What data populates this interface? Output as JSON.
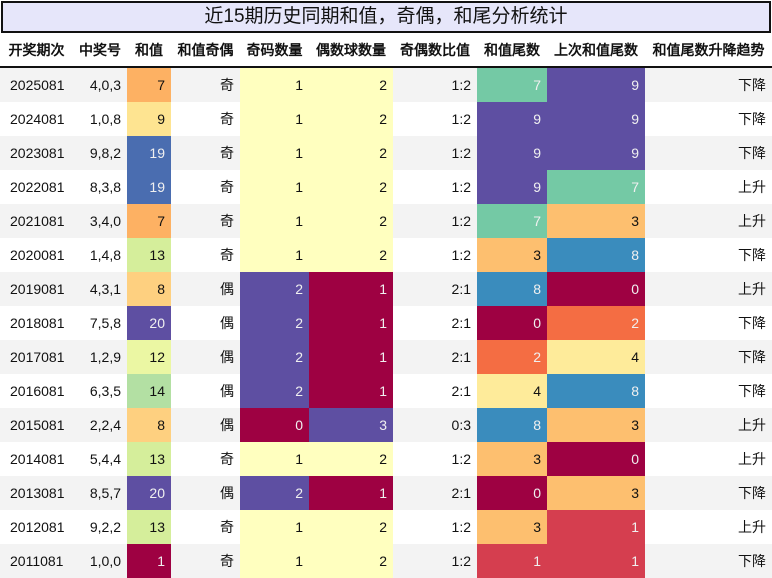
{
  "title": "近15期历史同期和值，奇偶，和尾分析统计",
  "headers": [
    "开奖期次",
    "中奖号",
    "和值",
    "和值奇偶",
    "奇码数量",
    "偶数球数量",
    "奇偶数比值",
    "和值尾数",
    "上次和值尾数",
    "和值尾数升降趋势"
  ],
  "rows": [
    [
      "2025081",
      "4,0,3",
      "7",
      "奇",
      "1",
      "2",
      "1:2",
      "7",
      "9",
      "下降"
    ],
    [
      "2024081",
      "1,0,8",
      "9",
      "奇",
      "1",
      "2",
      "1:2",
      "9",
      "9",
      "下降"
    ],
    [
      "2023081",
      "9,8,2",
      "19",
      "奇",
      "1",
      "2",
      "1:2",
      "9",
      "9",
      "下降"
    ],
    [
      "2022081",
      "8,3,8",
      "19",
      "奇",
      "1",
      "2",
      "1:2",
      "9",
      "7",
      "上升"
    ],
    [
      "2021081",
      "3,4,0",
      "7",
      "奇",
      "1",
      "2",
      "1:2",
      "7",
      "3",
      "上升"
    ],
    [
      "2020081",
      "1,4,8",
      "13",
      "奇",
      "1",
      "2",
      "1:2",
      "3",
      "8",
      "下降"
    ],
    [
      "2019081",
      "4,3,1",
      "8",
      "偶",
      "2",
      "1",
      "2:1",
      "8",
      "0",
      "上升"
    ],
    [
      "2018081",
      "7,5,8",
      "20",
      "偶",
      "2",
      "1",
      "2:1",
      "0",
      "2",
      "下降"
    ],
    [
      "2017081",
      "1,2,9",
      "12",
      "偶",
      "2",
      "1",
      "2:1",
      "2",
      "4",
      "下降"
    ],
    [
      "2016081",
      "6,3,5",
      "14",
      "偶",
      "2",
      "1",
      "2:1",
      "4",
      "8",
      "下降"
    ],
    [
      "2015081",
      "2,2,4",
      "8",
      "偶",
      "0",
      "3",
      "0:3",
      "8",
      "3",
      "上升"
    ],
    [
      "2014081",
      "5,4,4",
      "13",
      "奇",
      "1",
      "2",
      "1:2",
      "3",
      "0",
      "上升"
    ],
    [
      "2013081",
      "8,5,7",
      "20",
      "偶",
      "2",
      "1",
      "2:1",
      "0",
      "3",
      "下降"
    ],
    [
      "2012081",
      "9,2,2",
      "13",
      "奇",
      "1",
      "2",
      "1:2",
      "3",
      "1",
      "上升"
    ],
    [
      "2011081",
      "1,0,0",
      "1",
      "奇",
      "1",
      "2",
      "1:2",
      "1",
      "1",
      "下降"
    ]
  ],
  "colors": {
    "sum": {
      "1": "#9e0142",
      "7": "#fdb163",
      "8": "#fed080",
      "9": "#fee491",
      "12": "#ebf7a3",
      "13": "#d5ee9b",
      "14": "#b3e0a3",
      "19": "#4a6db0",
      "20": "#5e4fa2"
    },
    "count": {
      "0": "#9e0142",
      "1": "#ffffbf",
      "2": "#5e4fa2",
      "3": "#5e4fa2"
    },
    "even_count": {
      "1": "#9e0142",
      "2": "#ffffbf",
      "3": "#5e4fa2"
    },
    "tail": {
      "0": "#9e0142",
      "1": "#d53e4f",
      "2": "#f46d43",
      "3": "#fdbf6f",
      "4": "#feeb9a",
      "7": "#74c9a5",
      "8": "#3a8cbd",
      "9": "#5e4fa2"
    }
  }
}
